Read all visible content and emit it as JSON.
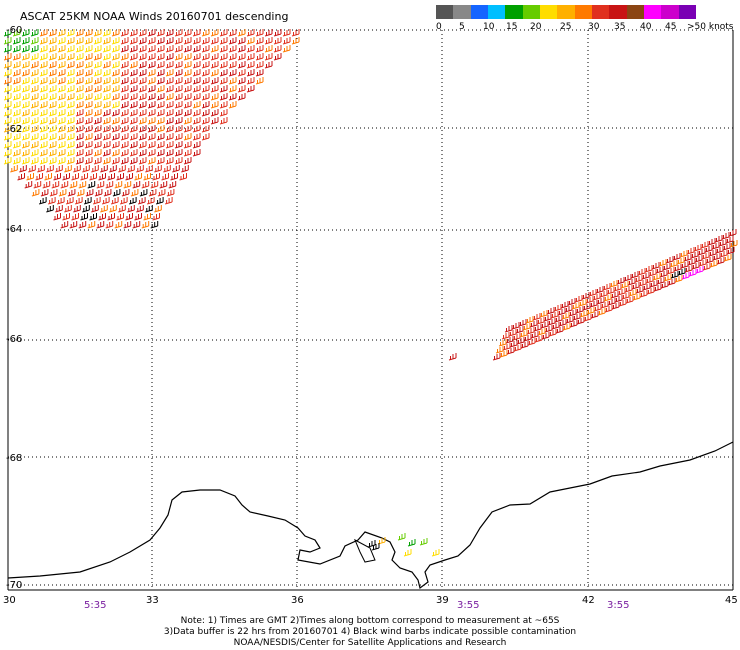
{
  "title": "ASCAT 25KM NOAA Winds 20160701 descending",
  "legend": {
    "colors": [
      "#555555",
      "#888888",
      "#1565ff",
      "#00bfff",
      "#00a000",
      "#66cc00",
      "#ffdd00",
      "#ffb000",
      "#ff7a00",
      "#e0301e",
      "#c81414",
      "#8b4513",
      "#ff00ff",
      "#cc00cc",
      "#7a00b4"
    ],
    "labels": [
      "0",
      "5",
      "10",
      "15",
      "20",
      "25",
      "30",
      "35",
      "40",
      "45",
      ">50 knots"
    ]
  },
  "lat_labels": [
    "-60",
    "-62",
    "-64",
    "-66",
    "-68",
    "-70"
  ],
  "lon_labels": [
    "30",
    "33",
    "36",
    "39",
    "42",
    "45"
  ],
  "times": [
    "5:35",
    "3:55",
    "3:55"
  ],
  "notes": [
    "Note: 1) Times are GMT 2)Times along bottom correspond to measurement at ~65S",
    "3)Data buffer is 22 hrs from 20160701 4) Black wind barbs indicate possible contamination",
    "NOAA/NESDIS/Center for Satellite Applications and Research"
  ]
}
